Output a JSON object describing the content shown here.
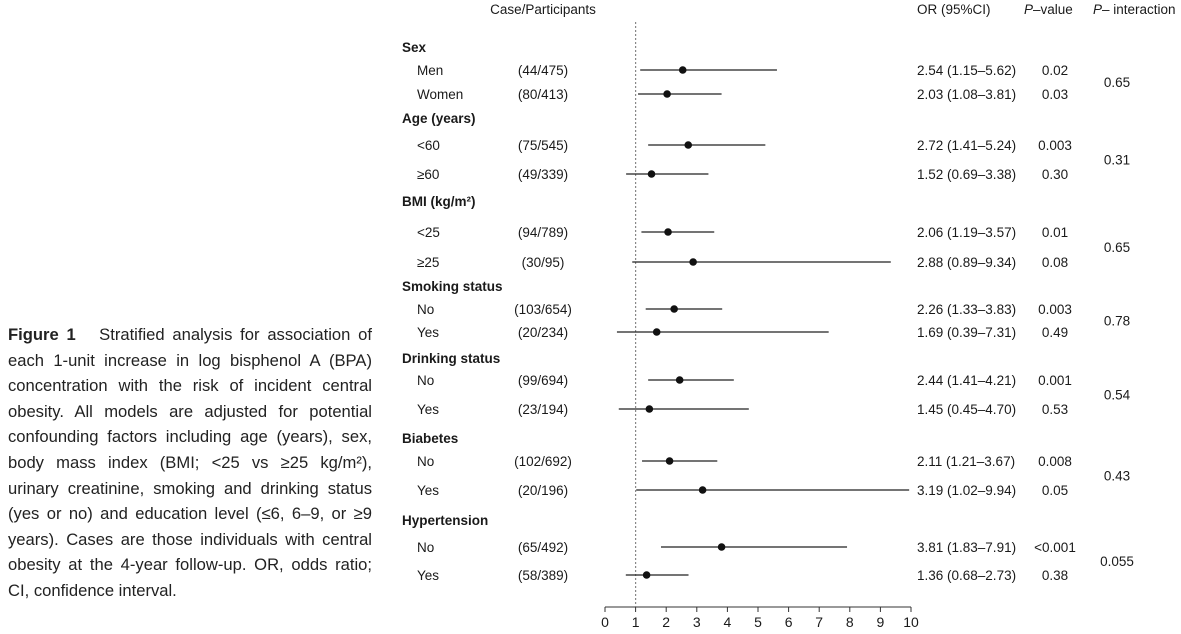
{
  "caption": {
    "label": "Figure 1",
    "body": "Stratified analysis for association of each 1-unit increase in log bisphenol A (BPA) concentration with the risk of incident central obesity. All models are adjusted for potential confounding factors including age (years), sex, body mass index (BMI; <25 vs ≥25 kg/m²), urinary creatinine, smoking and drinking status (yes or no) and education level (≤6, 6–9, or ≥9 years). Cases are those individuals with central obesity at the 4-year follow-up. OR, odds ratio; CI, confidence interval."
  },
  "chart_data": {
    "type": "forest",
    "title": "",
    "headers": {
      "cases": "Case/Participants",
      "or": "OR (95%CI)",
      "p_value": "P–value",
      "p_interaction": "P– interaction"
    },
    "xlim": [
      0,
      10
    ],
    "x_ticks": [
      "0",
      "1",
      "2",
      "3",
      "4",
      "5",
      "6",
      "7",
      "8",
      "9",
      "10"
    ],
    "reference_line": 1,
    "groups": [
      {
        "name": "Sex",
        "p_interaction": "0.65",
        "rows": [
          {
            "label": "Men",
            "cases": "(44/475)",
            "or": 2.54,
            "lo": 1.15,
            "hi": 5.62,
            "or_text": "2.54 (1.15–5.62)",
            "p": "0.02"
          },
          {
            "label": "Women",
            "cases": "(80/413)",
            "or": 2.03,
            "lo": 1.08,
            "hi": 3.81,
            "or_text": "2.03 (1.08–3.81)",
            "p": "0.03"
          }
        ]
      },
      {
        "name": "Age (years)",
        "p_interaction": "0.31",
        "rows": [
          {
            "label": "<60",
            "cases": "(75/545)",
            "or": 2.72,
            "lo": 1.41,
            "hi": 5.24,
            "or_text": "2.72 (1.41–5.24)",
            "p": "0.003"
          },
          {
            "label": "≥60",
            "cases": "(49/339)",
            "or": 1.52,
            "lo": 0.69,
            "hi": 3.38,
            "or_text": "1.52 (0.69–3.38)",
            "p": "0.30"
          }
        ]
      },
      {
        "name": "BMI (kg/m²)",
        "p_interaction": "0.65",
        "rows": [
          {
            "label": "<25",
            "cases": "(94/789)",
            "or": 2.06,
            "lo": 1.19,
            "hi": 3.57,
            "or_text": "2.06 (1.19–3.57)",
            "p": "0.01"
          },
          {
            "label": "≥25",
            "cases": "(30/95)",
            "or": 2.88,
            "lo": 0.89,
            "hi": 9.34,
            "or_text": "2.88 (0.89–9.34)",
            "p": "0.08"
          }
        ]
      },
      {
        "name": "Smoking status",
        "p_interaction": "0.78",
        "rows": [
          {
            "label": "No",
            "cases": "(103/654)",
            "or": 2.26,
            "lo": 1.33,
            "hi": 3.83,
            "or_text": "2.26 (1.33–3.83)",
            "p": "0.003"
          },
          {
            "label": "Yes",
            "cases": "(20/234)",
            "or": 1.69,
            "lo": 0.39,
            "hi": 7.31,
            "or_text": "1.69 (0.39–7.31)",
            "p": "0.49"
          }
        ]
      },
      {
        "name": "Drinking status",
        "p_interaction": "0.54",
        "rows": [
          {
            "label": "No",
            "cases": "(99/694)",
            "or": 2.44,
            "lo": 1.41,
            "hi": 4.21,
            "or_text": "2.44 (1.41–4.21)",
            "p": "0.001"
          },
          {
            "label": "Yes",
            "cases": "(23/194)",
            "or": 1.45,
            "lo": 0.45,
            "hi": 4.7,
            "or_text": "1.45 (0.45–4.70)",
            "p": "0.53"
          }
        ]
      },
      {
        "name": "Biabetes",
        "p_interaction": "0.43",
        "rows": [
          {
            "label": "No",
            "cases": "(102/692)",
            "or": 2.11,
            "lo": 1.21,
            "hi": 3.67,
            "or_text": "2.11 (1.21–3.67)",
            "p": "0.008"
          },
          {
            "label": "Yes",
            "cases": "(20/196)",
            "or": 3.19,
            "lo": 1.02,
            "hi": 9.94,
            "or_text": "3.19 (1.02–9.94)",
            "p": "0.05"
          }
        ]
      },
      {
        "name": "Hypertension",
        "p_interaction": "0.055",
        "rows": [
          {
            "label": "No",
            "cases": "(65/492)",
            "or": 3.81,
            "lo": 1.83,
            "hi": 7.91,
            "or_text": "3.81 (1.83–7.91)",
            "p": "<0.001"
          },
          {
            "label": "Yes",
            "cases": "(58/389)",
            "or": 1.36,
            "lo": 0.68,
            "hi": 2.73,
            "or_text": "1.36 (0.68–2.73)",
            "p": "0.38"
          }
        ]
      }
    ]
  }
}
